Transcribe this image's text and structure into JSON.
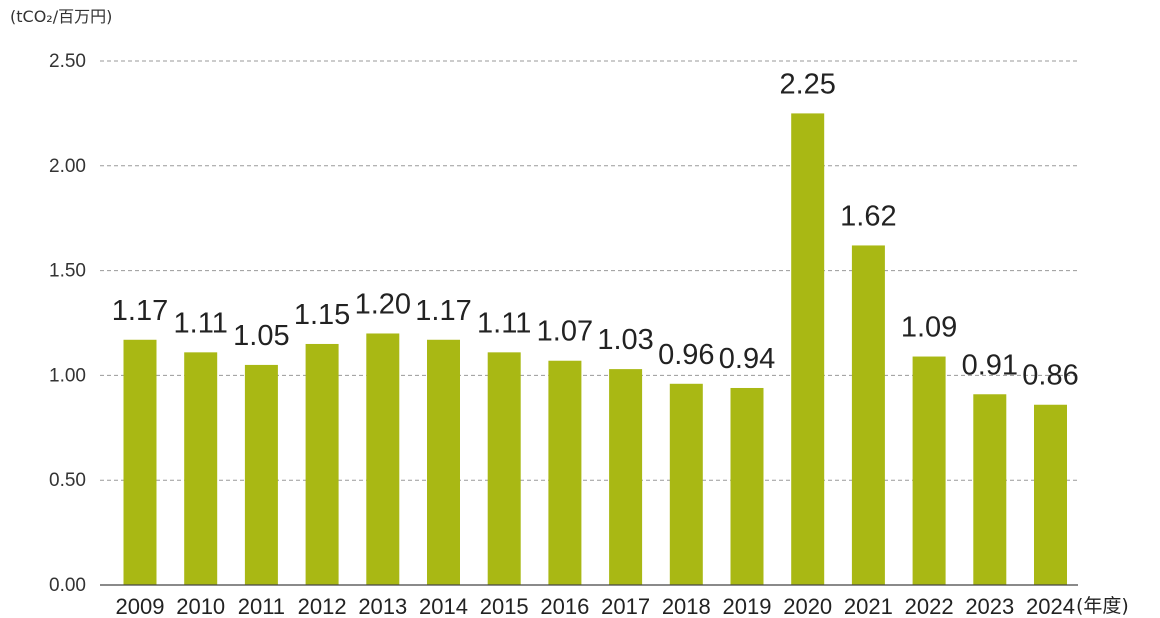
{
  "chart_data": {
    "type": "bar",
    "title": "",
    "ylabel": "(tCO₂/百万円)",
    "xlabel": "(年度)",
    "categories": [
      "2009",
      "2010",
      "2011",
      "2012",
      "2013",
      "2014",
      "2015",
      "2016",
      "2017",
      "2018",
      "2019",
      "2020",
      "2021",
      "2022",
      "2023",
      "2024"
    ],
    "values": [
      1.17,
      1.11,
      1.05,
      1.15,
      1.2,
      1.17,
      1.11,
      1.07,
      1.03,
      0.96,
      0.94,
      2.25,
      1.62,
      1.09,
      0.91,
      0.86
    ],
    "value_labels": [
      "1.17",
      "1.11",
      "1.05",
      "1.15",
      "1.20",
      "1.17",
      "1.11",
      "1.07",
      "1.03",
      "0.96",
      "0.94",
      "2.25",
      "1.62",
      "1.09",
      "0.91",
      "0.86"
    ],
    "ylim": [
      0,
      2.5
    ],
    "yticks": [
      0,
      0.5,
      1.0,
      1.5,
      2.0,
      2.5
    ],
    "ytick_labels": [
      "0.00",
      "0.50",
      "1.00",
      "1.50",
      "2.00",
      "2.50"
    ],
    "grid": true,
    "legend": "none",
    "bar_color": "#a9b814"
  }
}
